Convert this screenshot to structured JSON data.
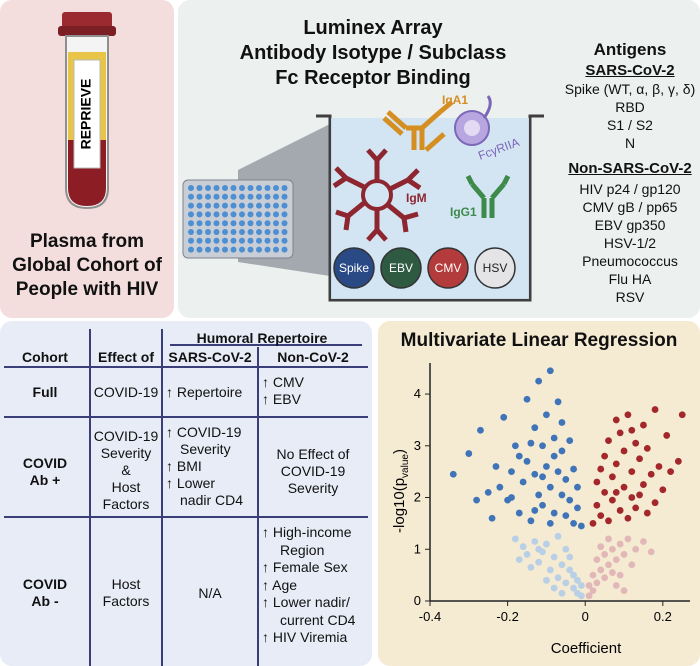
{
  "panel_a": {
    "tube_label": "REPRIEVE",
    "caption": [
      "Plasma from",
      "Global Cohort of",
      "People with HIV"
    ]
  },
  "panel_b": {
    "title": [
      "Luminex Array",
      "Antibody Isotype / Subclass",
      "Fc Receptor Binding"
    ],
    "antibodies": {
      "iga1": "IgA1",
      "igm": "IgM",
      "igg1": "IgG1",
      "receptor": "FcγRIIA"
    },
    "wells": [
      {
        "label": "Spike",
        "color": "#2a4a86"
      },
      {
        "label": "EBV",
        "color": "#2f5a42"
      },
      {
        "label": "CMV",
        "color": "#b33b3b"
      },
      {
        "label": "HSV",
        "color": "#e4e4e6"
      }
    ],
    "antigens": {
      "title": "Antigens",
      "sars_title": "SARS-CoV-2",
      "sars_items": [
        "Spike (WT, α, β, γ, δ)",
        "RBD",
        "S1 / S2",
        "N"
      ],
      "non_sars_title": "Non-SARS-CoV-2",
      "non_sars_items": [
        "HIV p24 / gp120",
        "CMV gB / pp65",
        "EBV gp350",
        "HSV-1/2",
        "Pneumococcus",
        "Flu HA",
        "RSV"
      ]
    }
  },
  "table": {
    "header_group": "Humoral Repertoire",
    "headers": [
      "Cohort",
      "Effect of",
      "SARS-CoV-2",
      "Non-CoV-2"
    ],
    "rows": [
      {
        "cohort": [
          "Full"
        ],
        "effect": [
          "COVID-19"
        ],
        "sars": [
          [
            "↑",
            "Repertoire"
          ]
        ],
        "noncov": [
          [
            "↑",
            "CMV"
          ],
          [
            "↑",
            "EBV"
          ]
        ]
      },
      {
        "cohort": [
          "COVID",
          "Ab +"
        ],
        "effect": [
          "COVID-19",
          "Severity",
          "&",
          "Host",
          "Factors"
        ],
        "sars": [
          [
            "↑",
            "COVID-19",
            "Severity"
          ],
          [
            "↑",
            "BMI"
          ],
          [
            "↑",
            "Lower",
            "nadir CD4"
          ]
        ],
        "noncov_text": [
          "No Effect of",
          "COVID-19",
          "Severity"
        ]
      },
      {
        "cohort": [
          "COVID",
          "Ab -"
        ],
        "effect": [
          "Host",
          "Factors"
        ],
        "sars_text": "N/A",
        "noncov": [
          [
            "↑",
            "High-income",
            "Region"
          ],
          [
            "↑",
            "Female Sex"
          ],
          [
            "↑",
            "Age"
          ],
          [
            "↑",
            "Lower nadir/",
            "current CD4"
          ],
          [
            "↑",
            "HIV Viremia"
          ]
        ]
      }
    ]
  },
  "chart_data": {
    "type": "scatter",
    "title": "Multivariate Linear Regression",
    "xlabel": "Coefficient",
    "ylabel": "-log10(p",
    "ylabel_sub": "value",
    "ylabel_close": ")",
    "xlim": [
      -0.4,
      0.27
    ],
    "ylim": [
      0,
      4.6
    ],
    "xticks": [
      -0.4,
      -0.2,
      0,
      0.2
    ],
    "xtick_labels": [
      "-0.4",
      "-0.2",
      "0",
      "0.2"
    ],
    "yticks": [
      0,
      1,
      2,
      3,
      4
    ],
    "ytick_labels": [
      "0",
      "1",
      "2",
      "3",
      "4"
    ],
    "colors": {
      "neg_sig": "#3f74b8",
      "pos_sig": "#a3282c",
      "neg_ns": "#b8cfe6",
      "pos_ns": "#e2b7b7"
    },
    "significance_threshold": 1.3,
    "series": [
      {
        "name": "",
        "points": [
          [
            -0.34,
            2.45
          ],
          [
            -0.3,
            2.85
          ],
          [
            -0.28,
            1.95
          ],
          [
            -0.27,
            3.3
          ],
          [
            -0.25,
            2.1
          ],
          [
            -0.24,
            1.6
          ],
          [
            -0.23,
            2.6
          ],
          [
            -0.22,
            2.2
          ],
          [
            -0.21,
            3.55
          ],
          [
            -0.2,
            1.95
          ],
          [
            -0.19,
            2.5
          ],
          [
            -0.18,
            3.0
          ],
          [
            -0.17,
            1.7
          ],
          [
            -0.16,
            2.3
          ],
          [
            -0.15,
            3.9
          ],
          [
            -0.15,
            2.7
          ],
          [
            -0.14,
            1.55
          ],
          [
            -0.13,
            2.45
          ],
          [
            -0.13,
            3.35
          ],
          [
            -0.12,
            2.05
          ],
          [
            -0.12,
            4.25
          ],
          [
            -0.11,
            3.0
          ],
          [
            -0.11,
            1.85
          ],
          [
            -0.1,
            2.6
          ],
          [
            -0.1,
            3.6
          ],
          [
            -0.09,
            4.45
          ],
          [
            -0.09,
            2.2
          ],
          [
            -0.08,
            3.15
          ],
          [
            -0.08,
            1.7
          ],
          [
            -0.07,
            2.5
          ],
          [
            -0.07,
            3.85
          ],
          [
            -0.06,
            2.05
          ],
          [
            -0.06,
            2.9
          ],
          [
            -0.05,
            1.65
          ],
          [
            -0.05,
            2.35
          ],
          [
            -0.04,
            3.1
          ],
          [
            -0.04,
            1.95
          ],
          [
            -0.03,
            2.55
          ],
          [
            -0.03,
            1.5
          ],
          [
            -0.02,
            1.8
          ],
          [
            -0.02,
            2.2
          ],
          [
            -0.01,
            1.45
          ],
          [
            -0.17,
            2.8
          ],
          [
            -0.14,
            3.05
          ],
          [
            -0.11,
            2.4
          ],
          [
            -0.09,
            1.5
          ],
          [
            -0.06,
            3.45
          ],
          [
            -0.13,
            1.75
          ],
          [
            -0.19,
            2.0
          ],
          [
            -0.08,
            2.8
          ]
        ]
      },
      {
        "name": "",
        "points": [
          [
            0.02,
            1.5
          ],
          [
            0.03,
            1.85
          ],
          [
            0.03,
            2.3
          ],
          [
            0.04,
            1.65
          ],
          [
            0.05,
            2.1
          ],
          [
            0.05,
            2.8
          ],
          [
            0.06,
            1.55
          ],
          [
            0.06,
            3.1
          ],
          [
            0.07,
            2.4
          ],
          [
            0.07,
            1.95
          ],
          [
            0.08,
            3.5
          ],
          [
            0.08,
            2.65
          ],
          [
            0.09,
            1.75
          ],
          [
            0.09,
            3.25
          ],
          [
            0.1,
            2.2
          ],
          [
            0.1,
            2.9
          ],
          [
            0.11,
            1.6
          ],
          [
            0.11,
            3.6
          ],
          [
            0.12,
            2.5
          ],
          [
            0.12,
            2.0
          ],
          [
            0.13,
            3.05
          ],
          [
            0.13,
            1.8
          ],
          [
            0.14,
            2.75
          ],
          [
            0.15,
            3.4
          ],
          [
            0.15,
            2.25
          ],
          [
            0.16,
            1.7
          ],
          [
            0.16,
            2.95
          ],
          [
            0.17,
            2.45
          ],
          [
            0.18,
            3.7
          ],
          [
            0.18,
            1.9
          ],
          [
            0.19,
            2.6
          ],
          [
            0.2,
            2.15
          ],
          [
            0.21,
            3.2
          ],
          [
            0.22,
            2.5
          ],
          [
            0.24,
            2.7
          ],
          [
            0.25,
            3.6
          ],
          [
            0.04,
            2.55
          ],
          [
            0.08,
            2.1
          ],
          [
            0.12,
            3.3
          ],
          [
            0.14,
            2.05
          ]
        ]
      },
      {
        "name": "",
        "points": [
          [
            -0.18,
            1.2
          ],
          [
            -0.16,
            1.05
          ],
          [
            -0.15,
            0.9
          ],
          [
            -0.13,
            1.15
          ],
          [
            -0.12,
            0.75
          ],
          [
            -0.11,
            0.95
          ],
          [
            -0.1,
            1.1
          ],
          [
            -0.09,
            0.6
          ],
          [
            -0.08,
            0.85
          ],
          [
            -0.07,
            1.25
          ],
          [
            -0.07,
            0.45
          ],
          [
            -0.06,
            0.7
          ],
          [
            -0.05,
            1.0
          ],
          [
            -0.05,
            0.35
          ],
          [
            -0.04,
            0.6
          ],
          [
            -0.04,
            0.85
          ],
          [
            -0.03,
            0.25
          ],
          [
            -0.03,
            0.5
          ],
          [
            -0.02,
            0.15
          ],
          [
            -0.02,
            0.4
          ],
          [
            -0.01,
            0.1
          ],
          [
            -0.01,
            0.3
          ],
          [
            -0.14,
            0.65
          ],
          [
            -0.1,
            0.4
          ],
          [
            -0.08,
            0.25
          ],
          [
            -0.06,
            0.15
          ],
          [
            -0.12,
            1.0
          ],
          [
            -0.17,
            0.8
          ]
        ]
      },
      {
        "name": "",
        "points": [
          [
            0.01,
            0.1
          ],
          [
            0.01,
            0.3
          ],
          [
            0.02,
            0.2
          ],
          [
            0.02,
            0.5
          ],
          [
            0.03,
            0.35
          ],
          [
            0.03,
            0.8
          ],
          [
            0.04,
            0.6
          ],
          [
            0.04,
            1.05
          ],
          [
            0.05,
            0.45
          ],
          [
            0.05,
            0.9
          ],
          [
            0.06,
            0.7
          ],
          [
            0.06,
            1.2
          ],
          [
            0.07,
            0.55
          ],
          [
            0.07,
            1.0
          ],
          [
            0.08,
            0.8
          ],
          [
            0.09,
            1.1
          ],
          [
            0.09,
            0.5
          ],
          [
            0.1,
            0.9
          ],
          [
            0.11,
            1.2
          ],
          [
            0.12,
            0.7
          ],
          [
            0.13,
            1.0
          ],
          [
            0.15,
            1.15
          ],
          [
            0.17,
            0.95
          ],
          [
            0.08,
            0.3
          ],
          [
            0.1,
            0.2
          ]
        ]
      }
    ]
  }
}
